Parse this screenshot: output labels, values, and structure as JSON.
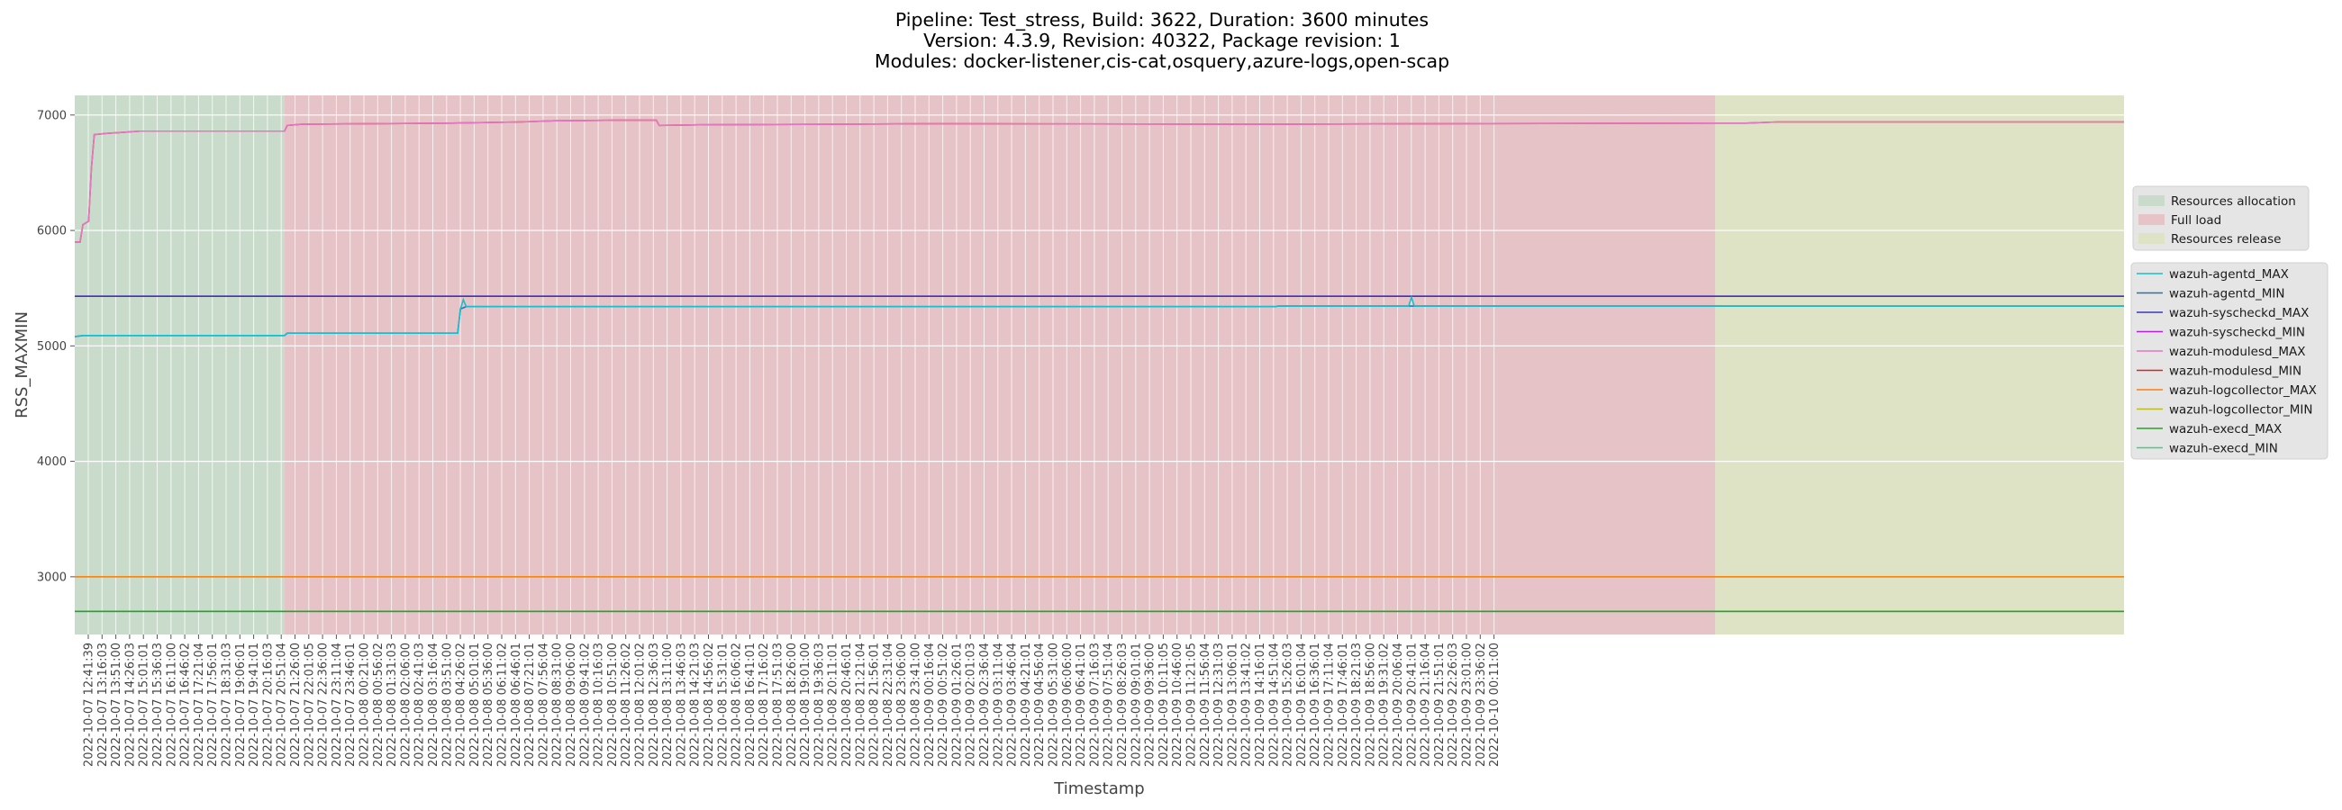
{
  "chart_data": {
    "type": "line",
    "title_lines": [
      "Pipeline: Test_stress, Build: 3622, Duration: 3600 minutes",
      "Version: 4.3.9, Revision: 40322, Package revision: 1",
      "Modules: docker-listener,cis-cat,osquery,azure-logs,open-scap"
    ],
    "xlabel": "Timestamp",
    "ylabel": "RSS_MAXMIN",
    "ylim": [
      2500,
      7170
    ],
    "yticks": [
      3000,
      4000,
      5000,
      6000,
      7000
    ],
    "grid": true,
    "x_tick_labels": [
      "2022-10-07 12:41:39",
      "2022-10-07 13:16:03",
      "2022-10-07 13:51:00",
      "2022-10-07 14:26:03",
      "2022-10-07 15:01:01",
      "2022-10-07 15:36:03",
      "2022-10-07 16:11:00",
      "2022-10-07 16:46:02",
      "2022-10-07 17:21:04",
      "2022-10-07 17:56:01",
      "2022-10-07 18:31:03",
      "2022-10-07 19:06:01",
      "2022-10-07 19:41:01",
      "2022-10-07 20:16:03",
      "2022-10-07 20:51:04",
      "2022-10-07 21:26:00",
      "2022-10-07 22:01:05",
      "2022-10-07 22:36:00",
      "2022-10-07 23:11:04",
      "2022-10-07 23:46:01",
      "2022-10-08 00:21:00",
      "2022-10-08 00:56:02",
      "2022-10-08 01:31:03",
      "2022-10-08 02:06:00",
      "2022-10-08 02:41:03",
      "2022-10-08 03:16:04",
      "2022-10-08 03:51:00",
      "2022-10-08 04:26:02",
      "2022-10-08 05:01:01",
      "2022-10-08 05:36:00",
      "2022-10-08 06:11:02",
      "2022-10-08 06:46:01",
      "2022-10-08 07:21:01",
      "2022-10-08 07:56:04",
      "2022-10-08 08:31:00",
      "2022-10-08 09:06:00",
      "2022-10-08 09:41:02",
      "2022-10-08 10:16:03",
      "2022-10-08 10:51:00",
      "2022-10-08 11:26:02",
      "2022-10-08 12:01:02",
      "2022-10-08 12:36:03",
      "2022-10-08 13:11:00",
      "2022-10-08 13:46:03",
      "2022-10-08 14:21:03",
      "2022-10-08 14:56:02",
      "2022-10-08 15:31:01",
      "2022-10-08 16:06:02",
      "2022-10-08 16:41:01",
      "2022-10-08 17:16:02",
      "2022-10-08 17:51:03",
      "2022-10-08 18:26:00",
      "2022-10-08 19:01:00",
      "2022-10-08 19:36:03",
      "2022-10-08 20:11:01",
      "2022-10-08 20:46:01",
      "2022-10-08 21:21:04",
      "2022-10-08 21:56:01",
      "2022-10-08 22:31:04",
      "2022-10-08 23:06:00",
      "2022-10-08 23:41:00",
      "2022-10-09 00:16:04",
      "2022-10-09 00:51:02",
      "2022-10-09 01:26:01",
      "2022-10-09 02:01:03",
      "2022-10-09 02:36:04",
      "2022-10-09 03:11:04",
      "2022-10-09 03:46:04",
      "2022-10-09 04:21:01",
      "2022-10-09 04:56:04",
      "2022-10-09 05:31:00",
      "2022-10-09 06:06:00",
      "2022-10-09 06:41:01",
      "2022-10-09 07:16:03",
      "2022-10-09 07:51:04",
      "2022-10-09 08:26:03",
      "2022-10-09 09:01:01",
      "2022-10-09 09:36:00",
      "2022-10-09 10:11:05",
      "2022-10-09 10:46:00",
      "2022-10-09 11:21:05",
      "2022-10-09 11:56:04",
      "2022-10-09 12:31:03",
      "2022-10-09 13:06:01",
      "2022-10-09 13:41:02",
      "2022-10-09 14:16:01",
      "2022-10-09 14:51:04",
      "2022-10-09 15:26:03",
      "2022-10-09 16:01:04",
      "2022-10-09 16:36:01",
      "2022-10-09 17:11:04",
      "2022-10-09 17:46:01",
      "2022-10-09 18:21:03",
      "2022-10-09 18:56:00",
      "2022-10-09 19:31:02",
      "2022-10-09 20:06:04",
      "2022-10-09 20:41:01",
      "2022-10-09 21:16:04",
      "2022-10-09 21:51:01",
      "2022-10-09 22:26:03",
      "2022-10-09 23:01:00",
      "2022-10-09 23:36:02",
      "2022-10-10 00:11:00"
    ],
    "phases": [
      {
        "name": "Resources allocation",
        "color": "#c9dccb",
        "from": "2022-10-07 12:41:39",
        "to": "2022-10-07 18:51:00"
      },
      {
        "name": "Full load",
        "color": "#e6c3c7",
        "from": "2022-10-07 18:51:00",
        "to": "2022-10-09 12:51:00"
      },
      {
        "name": "Resources release",
        "color": "#dfe3c5",
        "from": "2022-10-09 12:51:00",
        "to": "2022-10-10 00:51:00"
      }
    ],
    "x_start": "2022-10-07 12:41:39",
    "x_end": "2022-10-10 00:51:00",
    "series": [
      {
        "name": "wazuh-agentd_MAX",
        "color": "#17becf",
        "points": [
          [
            "2022-10-07 12:41:39",
            5080
          ],
          [
            "2022-10-07 12:56:00",
            5090
          ],
          [
            "2022-10-07 18:51:00",
            5090
          ],
          [
            "2022-10-07 18:56:00",
            5110
          ],
          [
            "2022-10-07 23:56:00",
            5110
          ],
          [
            "2022-10-08 00:01:00",
            5320
          ],
          [
            "2022-10-08 00:06:00",
            5400
          ],
          [
            "2022-10-08 00:11:00",
            5340
          ],
          [
            "2022-10-08 23:56:00",
            5340
          ],
          [
            "2022-10-09 00:01:00",
            5345
          ],
          [
            "2022-10-09 03:51:00",
            5345
          ],
          [
            "2022-10-09 03:56:00",
            5420
          ],
          [
            "2022-10-09 04:01:00",
            5345
          ],
          [
            "2022-10-10 00:51:00",
            5345
          ]
        ]
      },
      {
        "name": "wazuh-agentd_MIN",
        "color": "#1f77b4",
        "points": [
          [
            "2022-10-07 12:41:39",
            5080
          ],
          [
            "2022-10-07 12:56:00",
            5090
          ],
          [
            "2022-10-07 18:51:00",
            5090
          ],
          [
            "2022-10-07 18:56:00",
            5110
          ],
          [
            "2022-10-07 23:56:00",
            5110
          ],
          [
            "2022-10-08 00:01:00",
            5320
          ],
          [
            "2022-10-08 00:11:00",
            5340
          ],
          [
            "2022-10-08 23:56:00",
            5340
          ],
          [
            "2022-10-09 00:01:00",
            5345
          ],
          [
            "2022-10-10 00:51:00",
            5345
          ]
        ]
      },
      {
        "name": "wazuh-syscheckd_MAX",
        "color": "#3b3bb3",
        "points": [
          [
            "2022-10-07 12:41:39",
            5430
          ],
          [
            "2022-10-10 00:51:00",
            5430
          ]
        ]
      },
      {
        "name": "wazuh-syscheckd_MIN",
        "color": "#b620e0",
        "points": [
          [
            "2022-10-07 12:41:39",
            5430
          ],
          [
            "2022-10-10 00:51:00",
            5430
          ]
        ]
      },
      {
        "name": "wazuh-modulesd_MAX",
        "color": "#e377c2",
        "points": [
          [
            "2022-10-07 12:41:39",
            5900
          ],
          [
            "2022-10-07 12:51:00",
            5900
          ],
          [
            "2022-10-07 12:56:00",
            6050
          ],
          [
            "2022-10-07 13:06:00",
            6080
          ],
          [
            "2022-10-07 13:11:00",
            6540
          ],
          [
            "2022-10-07 13:16:00",
            6830
          ],
          [
            "2022-10-07 13:36:00",
            6840
          ],
          [
            "2022-10-07 14:06:00",
            6850
          ],
          [
            "2022-10-07 14:36:00",
            6860
          ],
          [
            "2022-10-07 18:51:00",
            6860
          ],
          [
            "2022-10-07 18:56:00",
            6910
          ],
          [
            "2022-10-07 19:21:00",
            6920
          ],
          [
            "2022-10-07 23:46:00",
            6930
          ],
          [
            "2022-10-08 01:46:00",
            6940
          ],
          [
            "2022-10-08 02:46:00",
            6950
          ],
          [
            "2022-10-08 04:36:00",
            6955
          ],
          [
            "2022-10-08 05:46:00",
            6955
          ],
          [
            "2022-10-08 05:51:00",
            6910
          ],
          [
            "2022-10-08 07:00:00",
            6915
          ],
          [
            "2022-10-08 11:00:00",
            6920
          ],
          [
            "2022-10-08 14:00:00",
            6925
          ],
          [
            "2022-10-08 23:30:00",
            6920
          ],
          [
            "2022-10-09 05:00:00",
            6925
          ],
          [
            "2022-10-09 13:46:00",
            6930
          ],
          [
            "2022-10-09 14:41:00",
            6940
          ],
          [
            "2022-10-10 00:51:00",
            6940
          ]
        ]
      },
      {
        "name": "wazuh-modulesd_MIN",
        "color": "#d62728",
        "points": [
          [
            "2022-10-07 12:41:39",
            5900
          ],
          [
            "2022-10-07 12:51:00",
            5900
          ],
          [
            "2022-10-07 12:56:00",
            6050
          ],
          [
            "2022-10-07 13:06:00",
            6080
          ],
          [
            "2022-10-07 13:11:00",
            6540
          ],
          [
            "2022-10-07 13:16:00",
            6830
          ],
          [
            "2022-10-07 13:36:00",
            6840
          ],
          [
            "2022-10-07 14:06:00",
            6850
          ],
          [
            "2022-10-07 14:36:00",
            6860
          ],
          [
            "2022-10-07 18:51:00",
            6860
          ],
          [
            "2022-10-07 18:56:00",
            6910
          ],
          [
            "2022-10-07 19:21:00",
            6920
          ],
          [
            "2022-10-07 23:46:00",
            6930
          ],
          [
            "2022-10-08 01:46:00",
            6940
          ],
          [
            "2022-10-08 02:46:00",
            6950
          ],
          [
            "2022-10-08 04:36:00",
            6955
          ],
          [
            "2022-10-08 05:46:00",
            6955
          ],
          [
            "2022-10-08 05:51:00",
            6910
          ],
          [
            "2022-10-08 07:00:00",
            6915
          ],
          [
            "2022-10-08 11:00:00",
            6920
          ],
          [
            "2022-10-08 14:00:00",
            6925
          ],
          [
            "2022-10-08 23:30:00",
            6920
          ],
          [
            "2022-10-09 05:00:00",
            6925
          ],
          [
            "2022-10-09 13:46:00",
            6930
          ],
          [
            "2022-10-09 14:41:00",
            6940
          ],
          [
            "2022-10-10 00:51:00",
            6940
          ]
        ]
      },
      {
        "name": "wazuh-logcollector_MAX",
        "color": "#ff7f0e",
        "points": [
          [
            "2022-10-07 12:41:39",
            3000
          ],
          [
            "2022-10-10 00:51:00",
            3000
          ]
        ]
      },
      {
        "name": "wazuh-logcollector_MIN",
        "color": "#bcbd22",
        "points": [
          [
            "2022-10-07 12:41:39",
            3000
          ],
          [
            "2022-10-10 00:51:00",
            3000
          ]
        ]
      },
      {
        "name": "wazuh-execd_MAX",
        "color": "#2ca02c",
        "points": [
          [
            "2022-10-07 12:41:39",
            2700
          ],
          [
            "2022-10-10 00:51:00",
            2700
          ]
        ]
      },
      {
        "name": "wazuh-execd_MIN",
        "color": "#3fd17f",
        "points": [
          [
            "2022-10-07 12:41:39",
            2700
          ],
          [
            "2022-10-10 00:51:00",
            2700
          ]
        ]
      }
    ],
    "legend_phases_placement": "right",
    "legend_series_placement": "right"
  }
}
